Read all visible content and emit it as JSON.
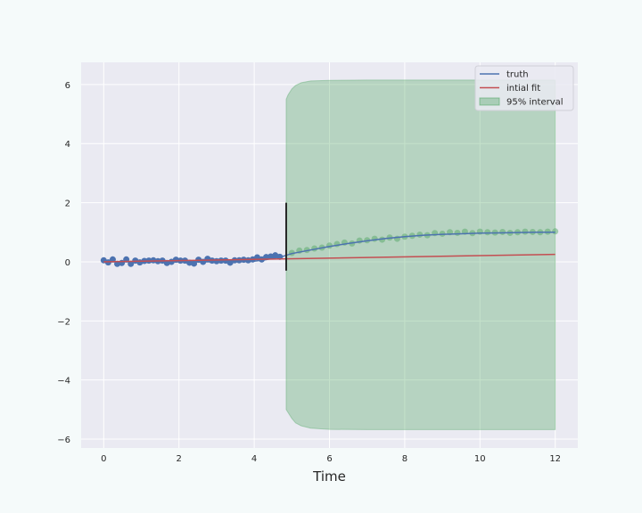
{
  "chart_data": {
    "type": "line",
    "title": "",
    "xlabel": "Time",
    "ylabel": "",
    "xlim": [
      -0.6,
      12.6
    ],
    "ylim": [
      -6.3,
      6.75
    ],
    "x_ticks": [
      0,
      2,
      4,
      6,
      8,
      10,
      12
    ],
    "y_ticks": [
      -6,
      -4,
      -2,
      0,
      2,
      4,
      6
    ],
    "grid": true,
    "legend_position": "top-right",
    "legend": [
      {
        "label": "truth",
        "kind": "line",
        "color": "#4c72b0"
      },
      {
        "label": "intial fit",
        "kind": "line",
        "color": "#c44e52"
      },
      {
        "label": "95% interval",
        "kind": "patch",
        "color": "#55a868"
      }
    ],
    "colors": {
      "background": "#f5fafa",
      "axes_face": "#eaeaf2",
      "grid": "#ffffff",
      "observed": "#4c72b0",
      "truth": "#4c72b0",
      "fit": "#c44e52",
      "interval": "#55a868",
      "marker": "#262626"
    },
    "observed_points": {
      "x": [
        0.0,
        0.12,
        0.24,
        0.36,
        0.48,
        0.6,
        0.72,
        0.84,
        0.96,
        1.08,
        1.2,
        1.32,
        1.44,
        1.56,
        1.68,
        1.8,
        1.92,
        2.04,
        2.16,
        2.28,
        2.4,
        2.52,
        2.64,
        2.76,
        2.88,
        3.0,
        3.12,
        3.24,
        3.36,
        3.48,
        3.6,
        3.72,
        3.84,
        3.96,
        4.08,
        4.2,
        4.32,
        4.44,
        4.56,
        4.68
      ],
      "y": [
        0.05,
        -0.02,
        0.08,
        -0.07,
        -0.04,
        0.08,
        -0.07,
        0.04,
        -0.02,
        0.03,
        0.04,
        0.05,
        0.02,
        0.04,
        -0.04,
        0.0,
        0.07,
        0.04,
        0.04,
        -0.03,
        -0.06,
        0.07,
        0.0,
        0.1,
        0.04,
        0.02,
        0.04,
        0.04,
        -0.03,
        0.05,
        0.05,
        0.07,
        0.05,
        0.08,
        0.15,
        0.08,
        0.16,
        0.18,
        0.22,
        0.17
      ]
    },
    "forecast_points": {
      "x": [
        5.0,
        5.2,
        5.4,
        5.6,
        5.8,
        6.0,
        6.2,
        6.4,
        6.6,
        6.8,
        7.0,
        7.2,
        7.4,
        7.6,
        7.8,
        8.0,
        8.2,
        8.4,
        8.6,
        8.8,
        9.0,
        9.2,
        9.4,
        9.6,
        9.8,
        10.0,
        10.2,
        10.4,
        10.6,
        10.8,
        11.0,
        11.2,
        11.4,
        11.6,
        11.8,
        12.0
      ],
      "y": [
        0.3,
        0.38,
        0.4,
        0.45,
        0.48,
        0.55,
        0.6,
        0.65,
        0.62,
        0.72,
        0.73,
        0.78,
        0.75,
        0.82,
        0.78,
        0.85,
        0.88,
        0.92,
        0.9,
        0.97,
        0.95,
        1.0,
        0.98,
        1.02,
        0.97,
        1.02,
        1.0,
        0.99,
        1.01,
        0.98,
        1.0,
        1.02,
        1.01,
        1.0,
        1.02,
        1.03
      ]
    },
    "series": [
      {
        "name": "truth",
        "x": [
          0,
          0.5,
          1,
          1.5,
          2,
          2.5,
          3,
          3.5,
          4,
          4.25,
          4.5,
          4.75,
          4.85,
          5,
          5.5,
          6,
          6.5,
          7,
          7.5,
          8,
          8.5,
          9,
          9.5,
          10,
          10.5,
          11,
          11.5,
          12
        ],
        "y": [
          0,
          0,
          0,
          0,
          0,
          0,
          0,
          0,
          0.02,
          0.06,
          0.12,
          0.18,
          0.22,
          0.28,
          0.4,
          0.52,
          0.62,
          0.71,
          0.79,
          0.85,
          0.9,
          0.93,
          0.95,
          0.97,
          0.98,
          0.99,
          1.0,
          1.0
        ]
      },
      {
        "name": "intial fit",
        "x": [
          0,
          12
        ],
        "y": [
          0,
          0.25
        ]
      }
    ],
    "interval": {
      "name": "95% interval",
      "x": [
        4.85,
        4.9,
        5.0,
        5.1,
        5.25,
        5.5,
        6.0,
        7.0,
        8.0,
        9.0,
        10.0,
        11.0,
        12.0
      ],
      "lower": [
        -5.0,
        -5.1,
        -5.3,
        -5.45,
        -5.55,
        -5.63,
        -5.67,
        -5.68,
        -5.68,
        -5.68,
        -5.68,
        -5.68,
        -5.68
      ],
      "upper": [
        5.5,
        5.65,
        5.85,
        5.97,
        6.06,
        6.12,
        6.14,
        6.15,
        6.15,
        6.15,
        6.15,
        6.15,
        6.15
      ]
    },
    "split_marker": {
      "x": 4.85,
      "y_range": [
        -0.3,
        2.0
      ]
    }
  }
}
